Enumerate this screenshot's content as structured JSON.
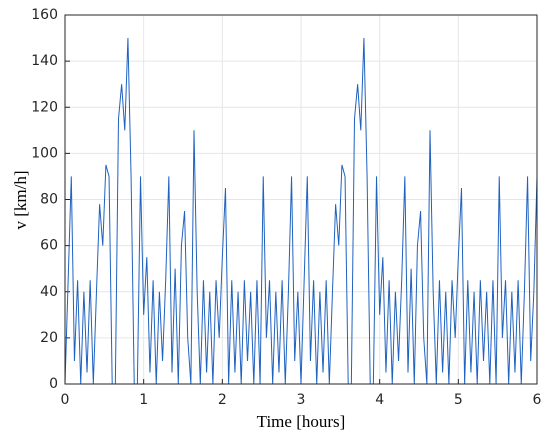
{
  "chart_data": {
    "type": "line",
    "xlabel": "Time [hours]",
    "ylabel": "v [km/h]",
    "x": [
      0,
      0.04,
      0.08,
      0.12,
      0.16,
      0.2,
      0.24,
      0.28,
      0.32,
      0.36,
      0.4,
      0.44,
      0.48,
      0.52,
      0.56,
      0.6,
      0.64,
      0.68,
      0.72,
      0.76,
      0.8,
      0.84,
      0.88,
      0.92,
      0.96,
      1,
      1.04,
      1.08,
      1.12,
      1.16,
      1.2,
      1.24,
      1.28,
      1.32,
      1.36,
      1.4,
      1.44,
      1.48,
      1.52,
      1.56,
      1.6,
      1.64,
      1.68,
      1.72,
      1.76,
      1.8,
      1.84,
      1.88,
      1.92,
      1.96,
      2,
      2.04,
      2.08,
      2.12,
      2.16,
      2.2,
      2.24,
      2.28,
      2.32,
      2.36,
      2.4,
      2.44,
      2.48,
      2.52,
      2.56,
      2.6,
      2.64,
      2.68,
      2.72,
      2.76,
      2.8,
      2.84,
      2.88,
      2.92,
      2.96,
      3,
      3.04,
      3.08,
      3.12,
      3.16,
      3.2,
      3.24,
      3.28,
      3.32,
      3.36,
      3.4,
      3.44,
      3.48,
      3.52,
      3.56,
      3.6,
      3.64,
      3.68,
      3.72,
      3.76,
      3.8,
      3.84,
      3.88,
      3.92,
      3.96,
      4,
      4.04,
      4.08,
      4.12,
      4.16,
      4.2,
      4.24,
      4.28,
      4.32,
      4.36,
      4.4,
      4.44,
      4.48,
      4.52,
      4.56,
      4.6,
      4.64,
      4.68,
      4.72,
      4.76,
      4.8,
      4.84,
      4.88,
      4.92,
      4.96,
      5,
      5.04,
      5.08,
      5.12,
      5.16,
      5.2,
      5.24,
      5.28,
      5.32,
      5.36,
      5.4,
      5.44,
      5.48,
      5.52,
      5.56,
      5.6,
      5.64,
      5.68,
      5.72,
      5.76,
      5.8,
      5.84,
      5.88,
      5.92,
      5.96,
      6
    ],
    "series": [
      {
        "color": "#1f62c0",
        "values": [
          0,
          45,
          90,
          10,
          45,
          0,
          40,
          5,
          45,
          0,
          40,
          78,
          60,
          95,
          90,
          0,
          0,
          115,
          130,
          110,
          150,
          90,
          0,
          0,
          90,
          30,
          55,
          5,
          45,
          0,
          40,
          10,
          45,
          90,
          5,
          50,
          0,
          60,
          75,
          20,
          0,
          110,
          40,
          0,
          45,
          5,
          40,
          0,
          45,
          20,
          55,
          85,
          0,
          45,
          5,
          40,
          0,
          45,
          10,
          40,
          0,
          45,
          0,
          90,
          20,
          45,
          0,
          40,
          5,
          45,
          0,
          40,
          90,
          10,
          40,
          0,
          45,
          90,
          10,
          45,
          0,
          40,
          5,
          45,
          0,
          40,
          78,
          60,
          95,
          90,
          0,
          0,
          115,
          130,
          110,
          150,
          90,
          0,
          0,
          90,
          30,
          55,
          5,
          45,
          0,
          40,
          10,
          45,
          90,
          5,
          50,
          0,
          60,
          75,
          20,
          0,
          110,
          40,
          0,
          45,
          5,
          40,
          0,
          45,
          20,
          55,
          85,
          0,
          45,
          5,
          40,
          0,
          45,
          10,
          40,
          0,
          45,
          0,
          90,
          20,
          45,
          0,
          40,
          5,
          45,
          0,
          40,
          90,
          10,
          40,
          90
        ]
      }
    ],
    "xlim": [
      0,
      6
    ],
    "xticks": [
      0,
      1,
      2,
      3,
      4,
      5,
      6
    ],
    "ylim": [
      0,
      160
    ],
    "yticks": [
      0,
      20,
      40,
      60,
      80,
      100,
      120,
      140,
      160
    ],
    "grid": true
  }
}
